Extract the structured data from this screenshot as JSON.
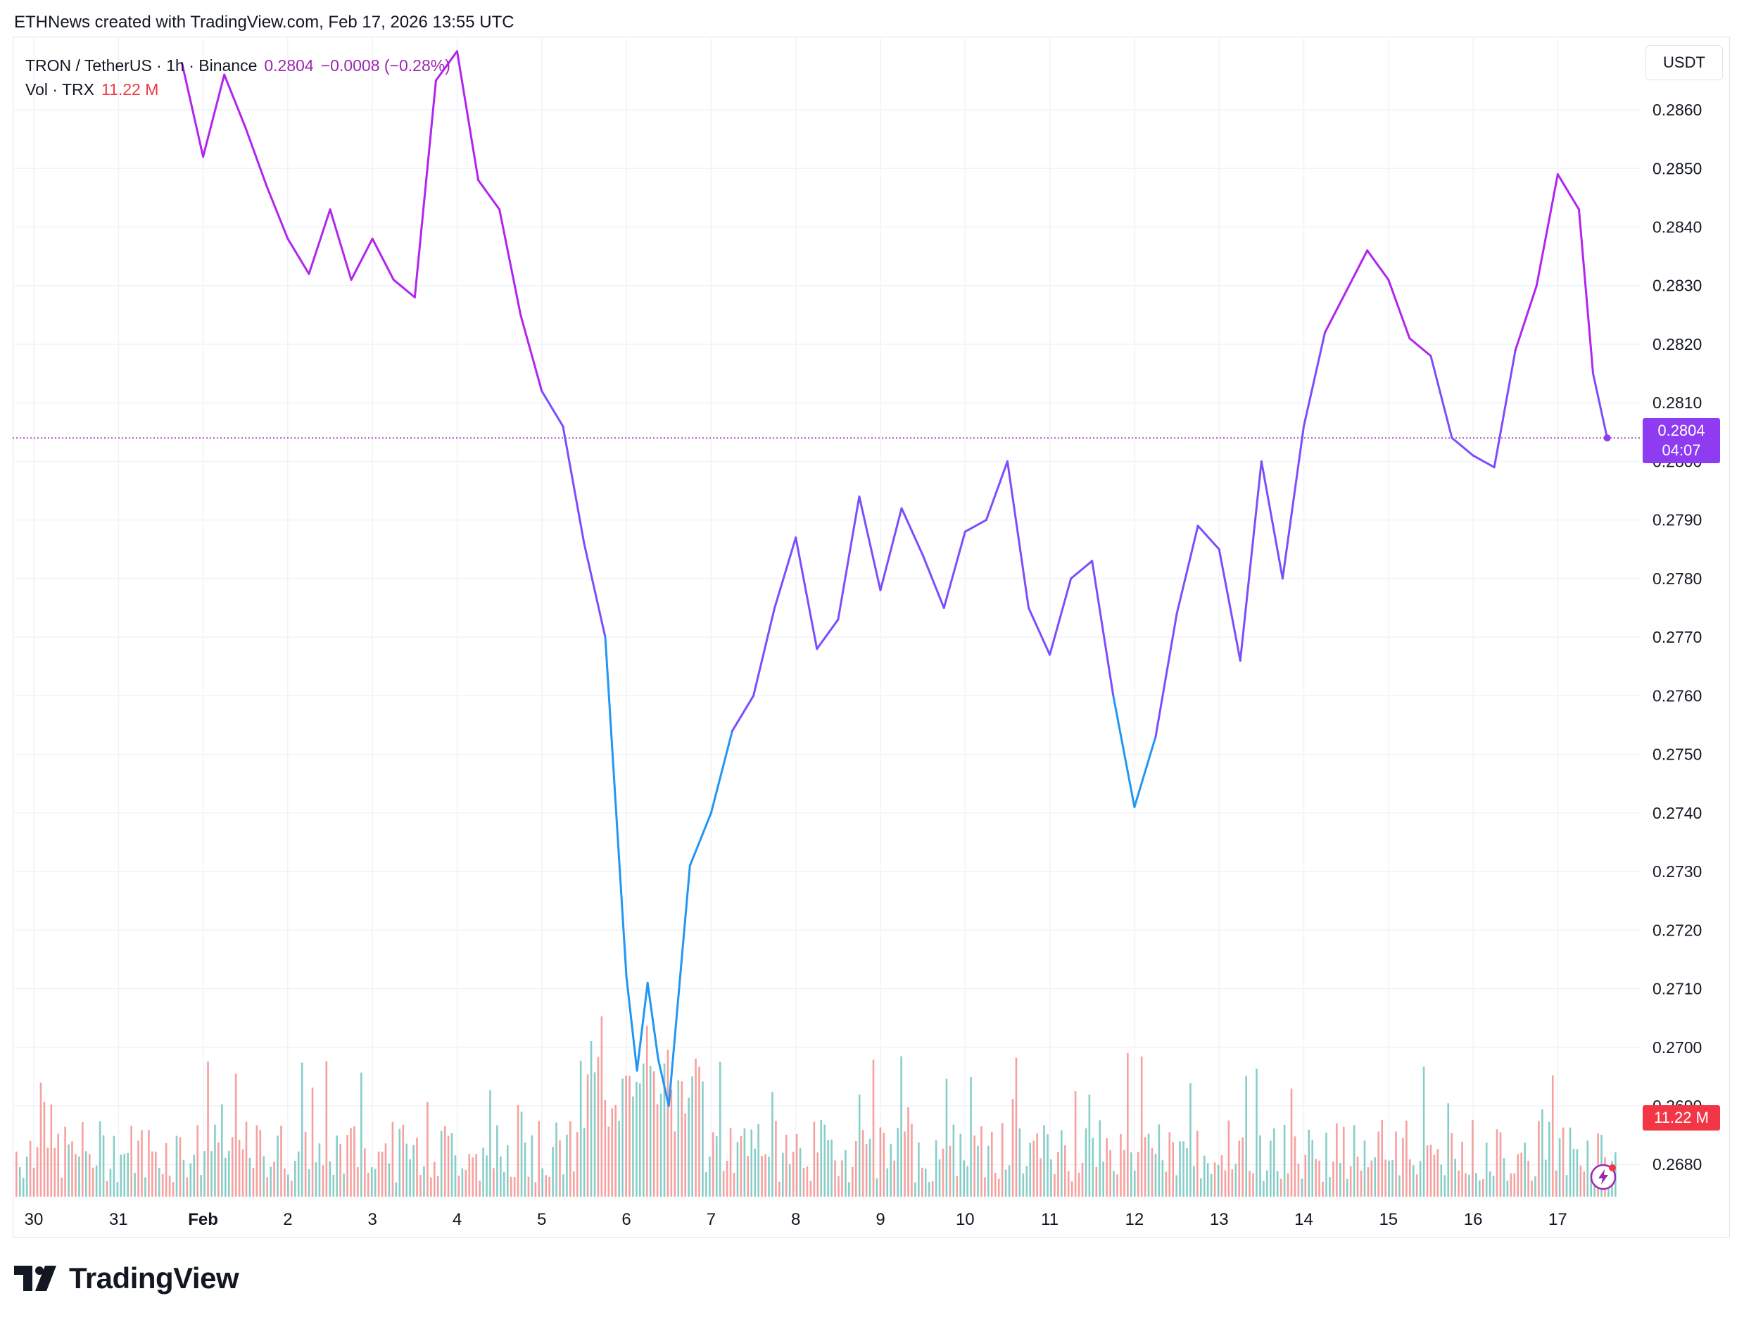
{
  "header": {
    "credit": "ETHNews created with TradingView.com, Feb 17, 2026 13:55 UTC"
  },
  "legend": {
    "symbol": "TRON / TetherUS · 1h · Binance",
    "price": "0.2804",
    "change": "−0.0008 (−0.28%)",
    "vol_label": "Vol · TRX",
    "vol_value": "11.22 M"
  },
  "currency_button": "USDT",
  "price_tag": {
    "price": "0.2804",
    "countdown": "04:07"
  },
  "vol_tag": "11.22 M",
  "footer": {
    "brand": "TradingView"
  },
  "colors": {
    "line_high": "#b224ef",
    "line_mid": "#7c4dff",
    "line_low": "#2196f3",
    "vol_up": "#26a69a",
    "vol_down": "#ef5350",
    "price_tag": "#8e3bf1",
    "vol_tag": "#f23645",
    "grid": "#f0f3fa"
  },
  "chart_data": {
    "type": "line",
    "title": "TRON / TetherUS · 1h · Binance",
    "xlabel": "",
    "ylabel": "",
    "y_axis_unit": "USDT",
    "ylim": [
      0.26745,
      0.28725
    ],
    "y_ticks": [
      "0.2860",
      "0.2850",
      "0.2840",
      "0.2830",
      "0.2820",
      "0.2810",
      "0.2800",
      "0.2790",
      "0.2780",
      "0.2770",
      "0.2760",
      "0.2750",
      "0.2740",
      "0.2730",
      "0.2720",
      "0.2710",
      "0.2700",
      "0.2690",
      "0.2680"
    ],
    "x_ticks": [
      "30",
      "31",
      "Feb",
      "2",
      "3",
      "4",
      "5",
      "6",
      "7",
      "8",
      "9",
      "10",
      "11",
      "12",
      "13",
      "14",
      "15",
      "16",
      "17"
    ],
    "x_tick_dates": [
      "2026-01-30",
      "2026-01-31",
      "2026-02-01",
      "2026-02-02",
      "2026-02-03",
      "2026-02-04",
      "2026-02-05",
      "2026-02-06",
      "2026-02-07",
      "2026-02-08",
      "2026-02-09",
      "2026-02-10",
      "2026-02-11",
      "2026-02-12",
      "2026-02-13",
      "2026-02-14",
      "2026-02-15",
      "2026-02-16",
      "2026-02-17"
    ],
    "grid": true,
    "last_price": 0.2804,
    "series": [
      {
        "x": [
          "2026-01-31 18:00",
          "2026-02-01 00:00",
          "2026-02-01 06:00",
          "2026-02-01 12:00",
          "2026-02-01 18:00",
          "2026-02-02 00:00",
          "2026-02-02 06:00",
          "2026-02-02 12:00",
          "2026-02-02 18:00",
          "2026-02-03 00:00",
          "2026-02-03 06:00",
          "2026-02-03 12:00",
          "2026-02-03 18:00",
          "2026-02-04 00:00",
          "2026-02-04 06:00",
          "2026-02-04 12:00",
          "2026-02-04 18:00",
          "2026-02-05 00:00",
          "2026-02-05 06:00",
          "2026-02-05 12:00",
          "2026-02-05 18:00",
          "2026-02-06 00:00",
          "2026-02-06 03:00",
          "2026-02-06 06:00",
          "2026-02-06 09:00",
          "2026-02-06 12:00",
          "2026-02-06 18:00",
          "2026-02-07 00:00",
          "2026-02-07 06:00",
          "2026-02-07 12:00",
          "2026-02-07 18:00",
          "2026-02-08 00:00",
          "2026-02-08 06:00",
          "2026-02-08 12:00",
          "2026-02-08 18:00",
          "2026-02-09 00:00",
          "2026-02-09 06:00",
          "2026-02-09 12:00",
          "2026-02-09 18:00",
          "2026-02-10 00:00",
          "2026-02-10 06:00",
          "2026-02-10 12:00",
          "2026-02-10 18:00",
          "2026-02-11 00:00",
          "2026-02-11 06:00",
          "2026-02-11 12:00",
          "2026-02-11 18:00",
          "2026-02-12 00:00",
          "2026-02-12 06:00",
          "2026-02-12 12:00",
          "2026-02-12 18:00",
          "2026-02-13 00:00",
          "2026-02-13 06:00",
          "2026-02-13 12:00",
          "2026-02-13 18:00",
          "2026-02-14 00:00",
          "2026-02-14 06:00",
          "2026-02-14 12:00",
          "2026-02-14 18:00",
          "2026-02-15 00:00",
          "2026-02-15 06:00",
          "2026-02-15 12:00",
          "2026-02-15 18:00",
          "2026-02-16 00:00",
          "2026-02-16 06:00",
          "2026-02-16 12:00",
          "2026-02-16 18:00",
          "2026-02-17 00:00",
          "2026-02-17 06:00",
          "2026-02-17 10:00",
          "2026-02-17 14:00"
        ],
        "values": [
          0.2868,
          0.2852,
          0.2866,
          0.2857,
          0.2847,
          0.2838,
          0.2832,
          0.2843,
          0.2831,
          0.2838,
          0.2831,
          0.2828,
          0.2865,
          0.287,
          0.2848,
          0.2843,
          0.2825,
          0.2812,
          0.2806,
          0.2786,
          0.277,
          0.2712,
          0.2696,
          0.2711,
          0.2698,
          0.269,
          0.2731,
          0.274,
          0.2754,
          0.276,
          0.2775,
          0.2787,
          0.2768,
          0.2773,
          0.2794,
          0.2778,
          0.2792,
          0.2784,
          0.2775,
          0.2788,
          0.279,
          0.28,
          0.2775,
          0.2767,
          0.278,
          0.2783,
          0.276,
          0.2741,
          0.2753,
          0.2774,
          0.2789,
          0.2785,
          0.2766,
          0.28,
          0.278,
          0.2806,
          0.2822,
          0.2829,
          0.2836,
          0.2831,
          0.2821,
          0.2818,
          0.2804,
          0.2801,
          0.2799,
          0.2819,
          0.283,
          0.2849,
          0.2843,
          0.2815,
          0.2804
        ]
      }
    ],
    "volume": {
      "name": "Vol · TRX",
      "last": "11.22 M"
    }
  }
}
